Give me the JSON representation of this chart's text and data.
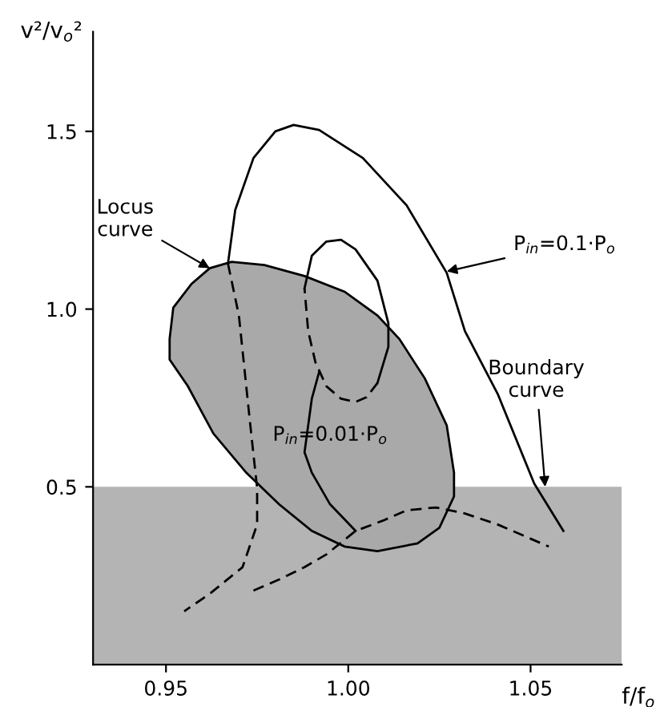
{
  "chart_data": {
    "type": "line",
    "xlabel": "f/f$_{o}$",
    "ylabel": "v²/v$_{o}$²",
    "xlim": [
      0.93,
      1.075
    ],
    "ylim": [
      0,
      1.78
    ],
    "xticks": [
      0.95,
      {
        "value": 1.0,
        "label": "1.00"
      },
      1.05
    ],
    "yticks": [
      0.5,
      {
        "value": 1.0,
        "label": "1.0"
      },
      1.5
    ],
    "grid": false,
    "legend": false,
    "marker": "none",
    "bands": [
      {
        "axis": "y",
        "from": 0,
        "to": 0.5,
        "color": "#b4b4b4"
      }
    ],
    "series": [
      {
        "type": "area",
        "color": "#a9a9a9",
        "x": [
          0.951,
          0.952,
          0.957,
          0.962,
          0.968,
          0.977,
          0.988,
          0.999,
          1.008,
          1.014,
          1.021,
          1.027,
          1.029,
          1.029,
          1.025,
          1.019,
          1.008,
          0.999,
          0.99,
          0.981,
          0.972,
          0.963,
          0.956,
          0.951,
          0.951
        ],
        "values": [
          0.916,
          1.004,
          1.071,
          1.115,
          1.133,
          1.124,
          1.093,
          1.049,
          0.982,
          0.916,
          0.805,
          0.673,
          0.54,
          0.473,
          0.385,
          0.341,
          0.319,
          0.332,
          0.376,
          0.451,
          0.54,
          0.65,
          0.783,
          0.858,
          0.916
        ]
      },
      {
        "color": "#000000",
        "line_style": "solid",
        "x": [
          0.967,
          0.969,
          0.974,
          0.98,
          0.985,
          0.992,
          1.004,
          1.016,
          1.027,
          1.032,
          1.041,
          1.051,
          1.059
        ],
        "values": [
          1.128,
          1.279,
          1.425,
          1.5,
          1.518,
          1.504,
          1.425,
          1.292,
          1.102,
          0.938,
          0.761,
          0.509,
          0.376
        ]
      },
      {
        "color": "#000000",
        "line_style": "dashed",
        "x": [
          0.967,
          0.97,
          0.973,
          0.975,
          0.975,
          0.971,
          0.962,
          0.955
        ],
        "values": [
          1.128,
          0.982,
          0.686,
          0.496,
          0.394,
          0.274,
          0.199,
          0.15
        ]
      },
      {
        "color": "#000000",
        "line_style": "solid",
        "x": [
          0.988,
          0.99,
          0.994,
          0.998,
          1.002,
          1.008,
          1.011,
          1.011,
          1.008
        ],
        "values": [
          1.058,
          1.15,
          1.19,
          1.195,
          1.168,
          1.08,
          0.96,
          0.894,
          0.792
        ]
      },
      {
        "color": "#000000",
        "line_style": "dashed",
        "x": [
          1.008,
          1.005,
          1.002,
          0.998,
          0.994,
          0.991,
          0.989,
          0.988
        ],
        "values": [
          0.792,
          0.752,
          0.739,
          0.748,
          0.783,
          0.85,
          0.938,
          1.058
        ]
      },
      {
        "color": "#000000",
        "line_style": "solid",
        "x": [
          0.992,
          0.99,
          0.988,
          0.99,
          0.995,
          1.002
        ],
        "values": [
          0.823,
          0.748,
          0.597,
          0.54,
          0.451,
          0.376
        ]
      },
      {
        "color": "#000000",
        "line_style": "dashed",
        "x": [
          0.974,
          0.981,
          0.988,
          0.994,
          1.002,
          1.01,
          1.016,
          1.024,
          1.032,
          1.041,
          1.055
        ],
        "values": [
          0.208,
          0.239,
          0.274,
          0.31,
          0.376,
          0.407,
          0.434,
          0.442,
          0.425,
          0.394,
          0.332
        ]
      }
    ],
    "annotations": [
      {
        "text": "Locus\ncurve",
        "x": 0.962,
        "y": 1.115
      },
      {
        "text": "P$_{in}$=0.1·P$_{o}$",
        "x": 1.027,
        "y": 1.106
      },
      "P$_{in}$=0.01·P$_{o}$",
      {
        "text": "Boundary\ncurve",
        "x": 1.054,
        "y": 0.5
      }
    ]
  }
}
